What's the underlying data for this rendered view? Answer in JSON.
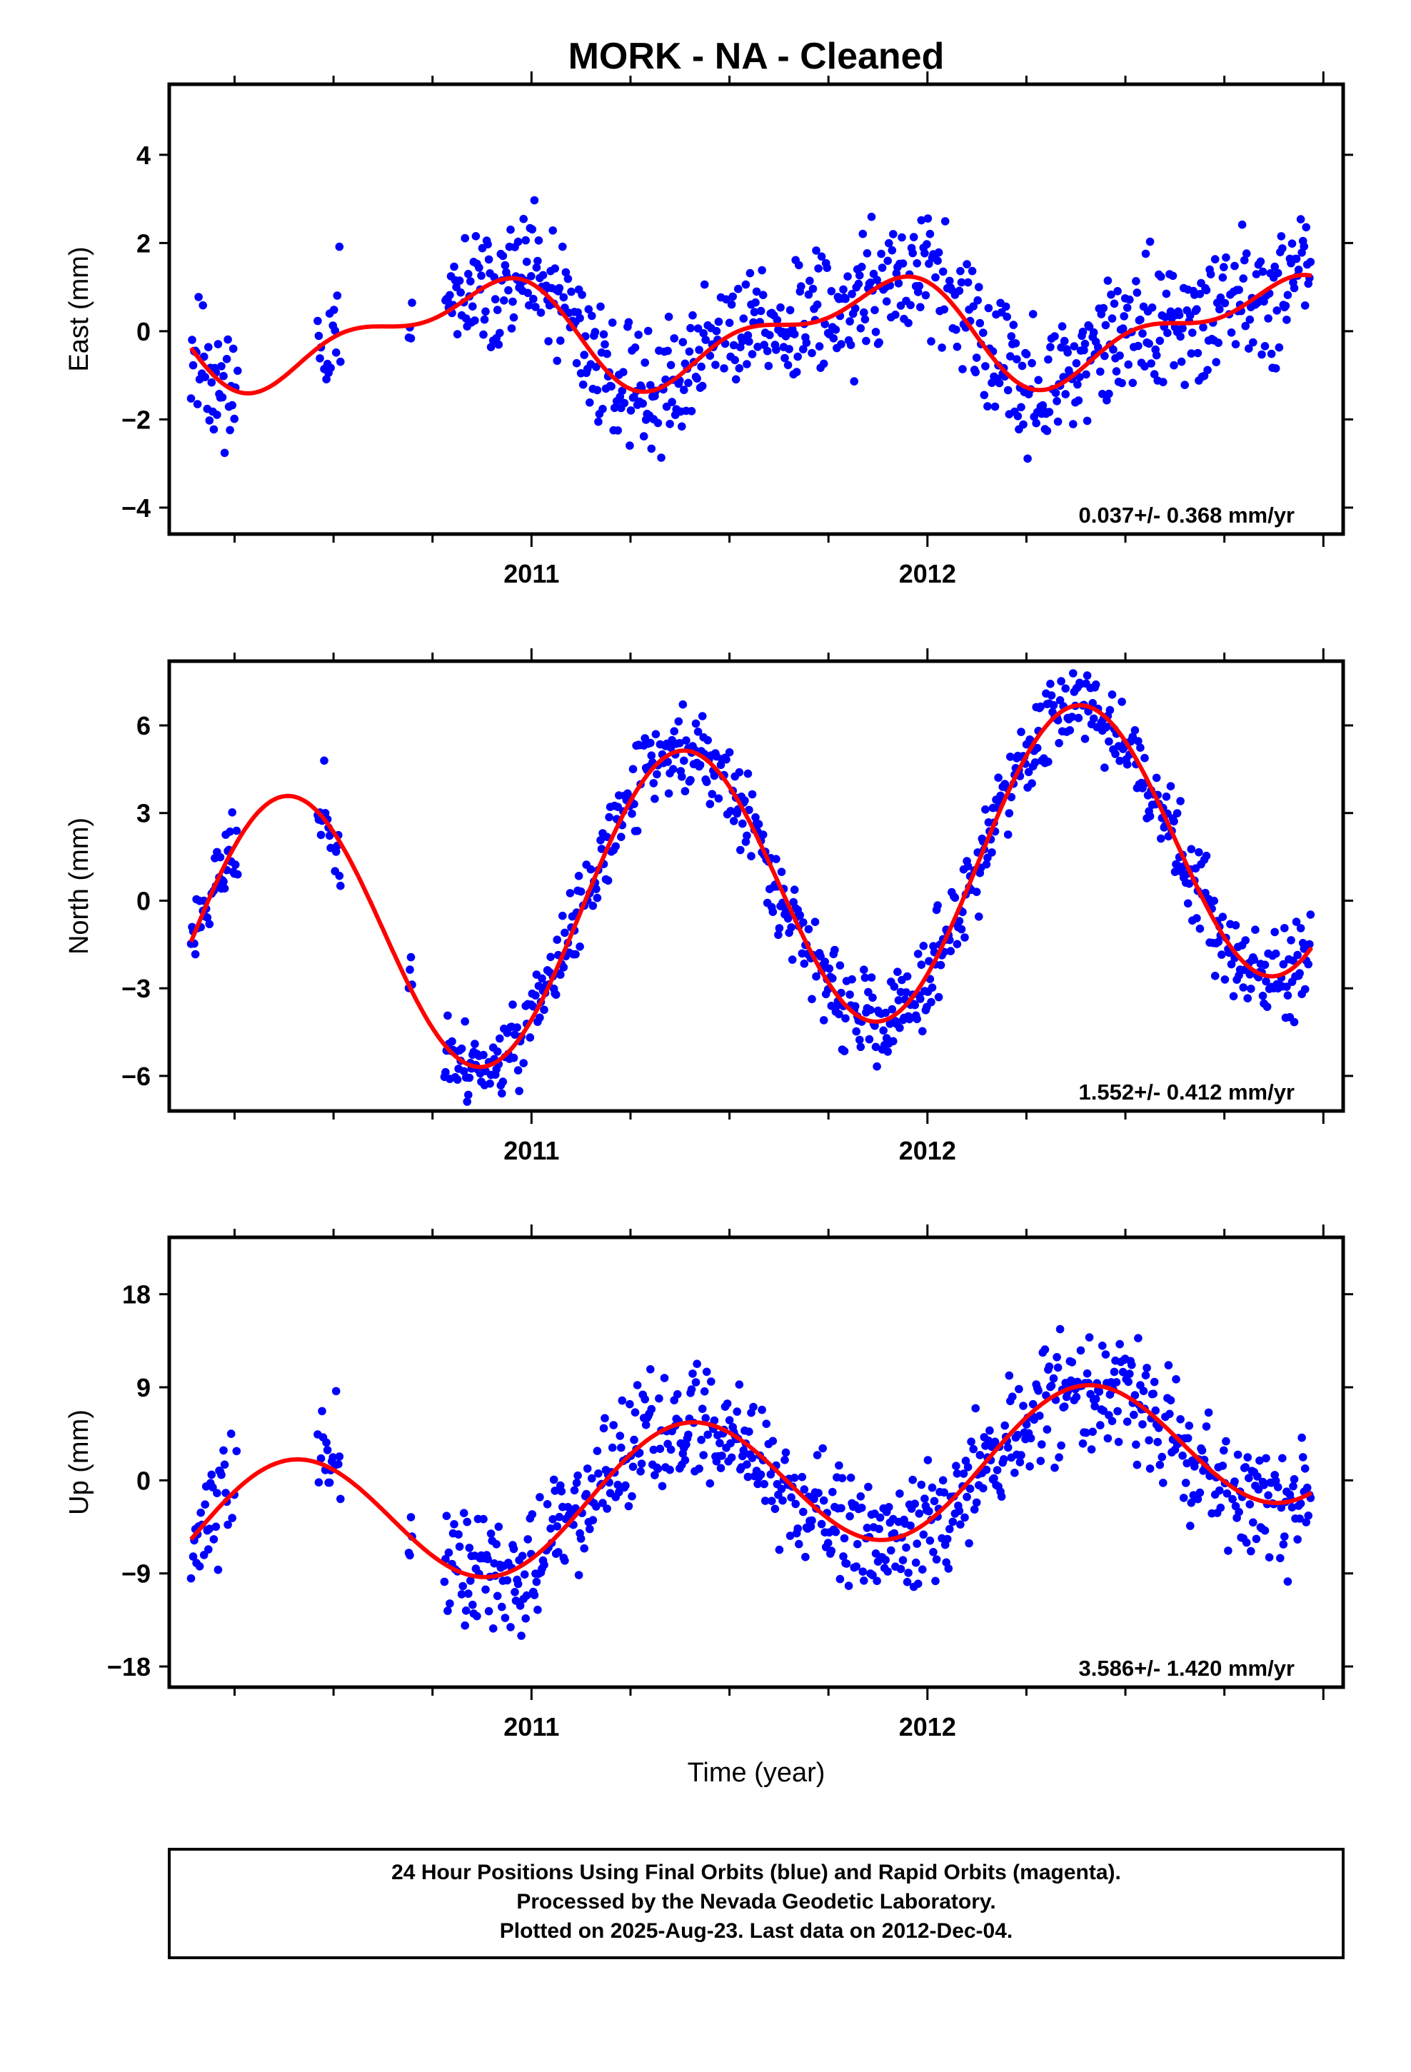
{
  "title": "MORK  - NA - Cleaned",
  "xlabel": "Time (year)",
  "footer": {
    "lines": [
      "24 Hour Positions Using Final Orbits (blue) and Rapid Orbits (magenta).",
      "Processed by the Nevada Geodetic Laboratory.",
      "Plotted on 2025-Aug-23. Last data on 2012-Dec-04."
    ]
  },
  "colors": {
    "points": "#0000ff",
    "model": "#ff0000",
    "frame": "#000000"
  },
  "chart_data": [
    {
      "type": "scatter",
      "ylabel": "East (mm)",
      "rate_label": "0.037+/- 0.368 mm/yr",
      "xlim": [
        2010.085,
        2013.05
      ],
      "ylim": [
        -4.6,
        5.6
      ],
      "xticks": [
        2011,
        2012
      ],
      "yticks": [
        -4,
        -2,
        0,
        2,
        4
      ],
      "ytick_labels": [
        "−4",
        "−2",
        "0",
        "2",
        "4"
      ],
      "grid": false,
      "series": [
        {
          "kind": "points",
          "model": {
            "a": 0.0,
            "tref": 2011.5,
            "rate": 0.037,
            "c1": 0.6,
            "d1": -0.8,
            "c2": 0.5,
            "d2": 0.0
          },
          "noise": 0.9,
          "seed": 11,
          "coverage": [
            [
              2010.14,
              2010.26
            ],
            [
              2010.46,
              2010.52
            ],
            [
              2010.69,
              2010.7
            ],
            [
              2010.78,
              2012.97
            ]
          ]
        },
        {
          "kind": "line",
          "name": "model",
          "model": {
            "a": 0.0,
            "tref": 2011.5,
            "rate": 0.037,
            "c1": 0.6,
            "d1": -0.8,
            "c2": 0.5,
            "d2": 0.0
          }
        }
      ]
    },
    {
      "type": "scatter",
      "ylabel": "North (mm)",
      "rate_label": "1.552+/- 0.412 mm/yr",
      "xlim": [
        2010.085,
        2013.05
      ],
      "ylim": [
        -7.2,
        8.2
      ],
      "xticks": [
        2011,
        2012
      ],
      "yticks": [
        -6,
        -3,
        0,
        3,
        6
      ],
      "ytick_labels": [
        "−6",
        "−3",
        "0",
        "3",
        "6"
      ],
      "grid": false,
      "series": [
        {
          "kind": "points",
          "model": {
            "a": 0.3,
            "tref": 2011.5,
            "rate": 1.552,
            "c1": -3.6,
            "d1": 3.5,
            "c2": 0.0,
            "d2": 0.0
          },
          "noise": 0.9,
          "seed": 23,
          "coverage": [
            [
              2010.14,
              2010.26
            ],
            [
              2010.46,
              2010.52
            ],
            [
              2010.69,
              2010.7
            ],
            [
              2010.78,
              2012.97
            ]
          ]
        },
        {
          "kind": "line",
          "name": "model",
          "model": {
            "a": 0.3,
            "tref": 2011.5,
            "rate": 1.552,
            "c1": -3.6,
            "d1": 3.5,
            "c2": 0.0,
            "d2": 0.0
          }
        }
      ]
    },
    {
      "type": "scatter",
      "ylabel": "Up (mm)",
      "rate_label": "3.586+/- 1.420 mm/yr",
      "xlim": [
        2010.085,
        2013.05
      ],
      "ylim": [
        -20.0,
        23.5
      ],
      "xticks": [
        2011,
        2012
      ],
      "yticks": [
        -18,
        -9,
        0,
        9,
        18
      ],
      "ytick_labels": [
        "−18",
        "−9",
        "0",
        "9",
        "18"
      ],
      "grid": false,
      "series": [
        {
          "kind": "points",
          "model": {
            "a": -0.6,
            "tref": 2011.5,
            "rate": 3.586,
            "c1": -5.2,
            "d1": 4.0,
            "c2": 0.0,
            "d2": 0.0
          },
          "noise": 3.5,
          "seed": 37,
          "coverage": [
            [
              2010.14,
              2010.26
            ],
            [
              2010.46,
              2010.52
            ],
            [
              2010.69,
              2010.7
            ],
            [
              2010.78,
              2012.97
            ]
          ]
        },
        {
          "kind": "line",
          "name": "model",
          "model": {
            "a": -0.6,
            "tref": 2011.5,
            "rate": 3.586,
            "c1": -5.2,
            "d1": 4.0,
            "c2": 0.0,
            "d2": 0.0
          }
        }
      ]
    }
  ]
}
